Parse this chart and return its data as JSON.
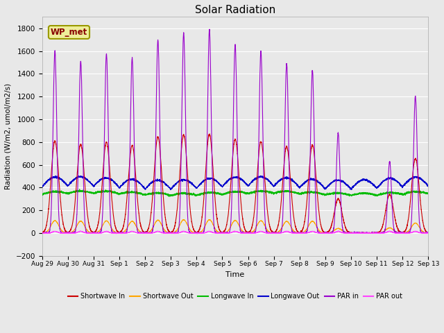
{
  "title": "Solar Radiation",
  "xlabel": "Time",
  "ylabel": "Radiation (W/m2, umol/m2/s)",
  "ylim": [
    -200,
    1900
  ],
  "yticks": [
    -200,
    0,
    200,
    400,
    600,
    800,
    1000,
    1200,
    1400,
    1600,
    1800
  ],
  "bg_color": "#e8e8e8",
  "series": {
    "shortwave_in": {
      "color": "#cc0000",
      "label": "Shortwave In"
    },
    "shortwave_out": {
      "color": "#ffa500",
      "label": "Shortwave Out"
    },
    "longwave_in": {
      "color": "#00bb00",
      "label": "Longwave In"
    },
    "longwave_out": {
      "color": "#0000cc",
      "label": "Longwave Out"
    },
    "par_in": {
      "color": "#9900cc",
      "label": "PAR in"
    },
    "par_out": {
      "color": "#ff44ff",
      "label": "PAR out"
    }
  },
  "station_label": "WP_met",
  "tick_labels": [
    "Aug 29",
    "Aug 30",
    "Aug 31",
    "Sep 1",
    "Sep 2",
    "Sep 3",
    "Sep 4",
    "Sep 5",
    "Sep 6",
    "Sep 7",
    "Sep 8",
    "Sep 9",
    "Sep 10",
    "Sep 11",
    "Sep 12",
    "Sep 13"
  ],
  "peaks_sw_in": [
    810,
    780,
    800,
    770,
    845,
    865,
    870,
    825,
    805,
    760,
    775,
    300,
    0,
    340,
    655,
    0
  ],
  "peaks_par_in": [
    1600,
    1510,
    1575,
    1540,
    1700,
    1760,
    1790,
    1660,
    1600,
    1490,
    1430,
    880,
    0,
    630,
    1205,
    0
  ],
  "longwave_in_base": 340,
  "longwave_out_base": 400,
  "n_days": 16
}
